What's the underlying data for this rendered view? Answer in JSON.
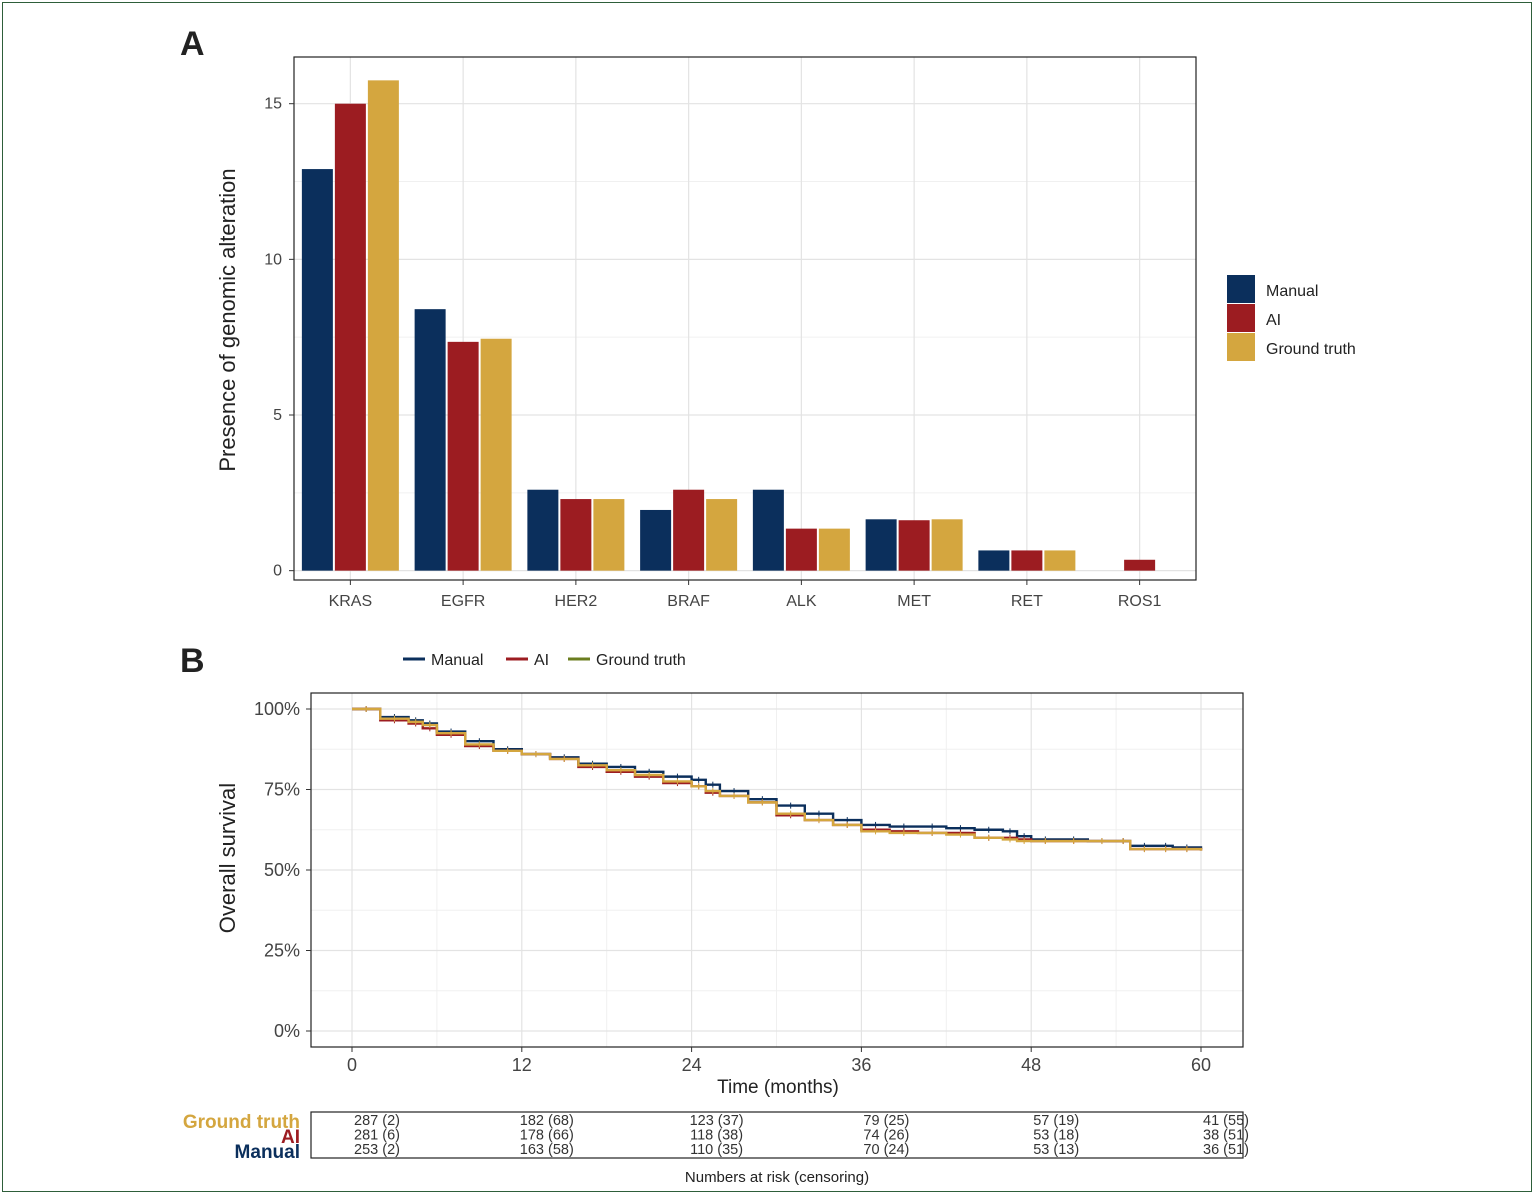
{
  "colors": {
    "Manual": "#0b2f5c",
    "AI": "#9c1c21",
    "Ground truth": "#d4a63f",
    "GroundTruthLegendLine": "#6b7d1f"
  },
  "panel_a": {
    "tag": "A"
  },
  "panel_b": {
    "tag": "B"
  },
  "chart_data": [
    {
      "type": "bar",
      "ylabel": "Presence of genomic alteration",
      "xlabel": "",
      "ylim": [
        -0.3,
        16.5
      ],
      "yticks": [
        0,
        5,
        10,
        15
      ],
      "categories": [
        "KRAS",
        "EGFR",
        "HER2",
        "BRAF",
        "ALK",
        "MET",
        "RET",
        "ROS1"
      ],
      "series": [
        {
          "name": "Manual",
          "values": [
            12.9,
            8.4,
            2.6,
            1.95,
            2.6,
            1.65,
            0.65,
            0
          ]
        },
        {
          "name": "AI",
          "values": [
            15.0,
            7.35,
            2.3,
            2.6,
            1.35,
            1.62,
            0.65,
            0.35
          ]
        },
        {
          "name": "Ground truth",
          "values": [
            15.75,
            7.45,
            2.3,
            2.3,
            1.35,
            1.65,
            0.65,
            0
          ]
        }
      ],
      "legend": {
        "position": "right",
        "entries": [
          "Manual",
          "AI",
          "Ground truth"
        ]
      },
      "grid": true
    },
    {
      "type": "line",
      "ylabel": "Overall survival",
      "xlabel": "Time (months)",
      "xlim": [
        0,
        60
      ],
      "ylim": [
        0,
        100
      ],
      "xticks": [
        0,
        12,
        24,
        36,
        48,
        60
      ],
      "ytick_labels": [
        "0%",
        "25%",
        "50%",
        "75%",
        "100%"
      ],
      "legend": {
        "position": "top",
        "entries": [
          "Manual",
          "AI",
          "Ground truth"
        ]
      },
      "grid": true,
      "series": [
        {
          "name": "Manual",
          "x": [
            0,
            2,
            4,
            5,
            6,
            8,
            10,
            12,
            14,
            16,
            18,
            20,
            22,
            24,
            25,
            26,
            28,
            30,
            32,
            34,
            36,
            38,
            40,
            42,
            44,
            46,
            47,
            48,
            50,
            52,
            54,
            55,
            57,
            58,
            60
          ],
          "y": [
            100,
            97.5,
            96.5,
            95.5,
            93,
            90,
            87.5,
            86,
            85,
            83,
            82,
            80.5,
            79,
            78,
            76.5,
            74.5,
            72,
            70,
            67.5,
            65.5,
            64,
            63.5,
            63.5,
            63,
            62.5,
            62,
            60.5,
            59.5,
            59.5,
            59,
            59,
            57.5,
            57.5,
            57,
            56.5
          ]
        },
        {
          "name": "AI",
          "x": [
            0,
            2,
            4,
            5,
            6,
            8,
            10,
            12,
            14,
            16,
            18,
            20,
            22,
            24,
            25,
            26,
            28,
            30,
            32,
            34,
            36,
            38,
            40,
            42,
            44,
            46,
            47,
            48,
            50,
            52,
            54,
            55,
            57,
            58,
            60
          ],
          "y": [
            100,
            96.5,
            95.5,
            94,
            92,
            88.5,
            87,
            86,
            84.5,
            82,
            80.5,
            79,
            77,
            76,
            74,
            73,
            71,
            67,
            65.5,
            64,
            62.5,
            62,
            61.5,
            61.5,
            60,
            60,
            59.5,
            59,
            59,
            59,
            59,
            56.5,
            56.5,
            56.5,
            56
          ]
        },
        {
          "name": "Ground truth",
          "x": [
            0,
            2,
            4,
            5,
            6,
            8,
            10,
            12,
            14,
            16,
            18,
            20,
            22,
            24,
            25,
            26,
            28,
            30,
            32,
            34,
            36,
            38,
            40,
            42,
            44,
            46,
            47,
            48,
            50,
            52,
            54,
            55,
            57,
            58,
            60
          ],
          "y": [
            100,
            97,
            96,
            95,
            92.5,
            89,
            87,
            86,
            84.5,
            82.5,
            81,
            79.5,
            77.5,
            76,
            74.5,
            73,
            71,
            67.5,
            65.5,
            64,
            62,
            61.5,
            61.5,
            61,
            60,
            59.5,
            59,
            59,
            59,
            59,
            59,
            56.5,
            56.5,
            56.5,
            56
          ]
        }
      ]
    }
  ],
  "risk_table": {
    "caption": "Numbers at risk (censoring)",
    "times": [
      0,
      12,
      24,
      36,
      48,
      60
    ],
    "rows": [
      {
        "name": "Ground truth",
        "values": [
          "287 (2)",
          "182 (68)",
          "123 (37)",
          "79 (25)",
          "57 (19)",
          "41 (55)"
        ]
      },
      {
        "name": "AI",
        "values": [
          "281 (6)",
          "178 (66)",
          "118 (38)",
          "74 (26)",
          "53 (18)",
          "38 (51)"
        ]
      },
      {
        "name": "Manual",
        "values": [
          "253 (2)",
          "163 (58)",
          "110 (35)",
          "70 (24)",
          "53 (13)",
          "36 (51)"
        ]
      }
    ]
  }
}
